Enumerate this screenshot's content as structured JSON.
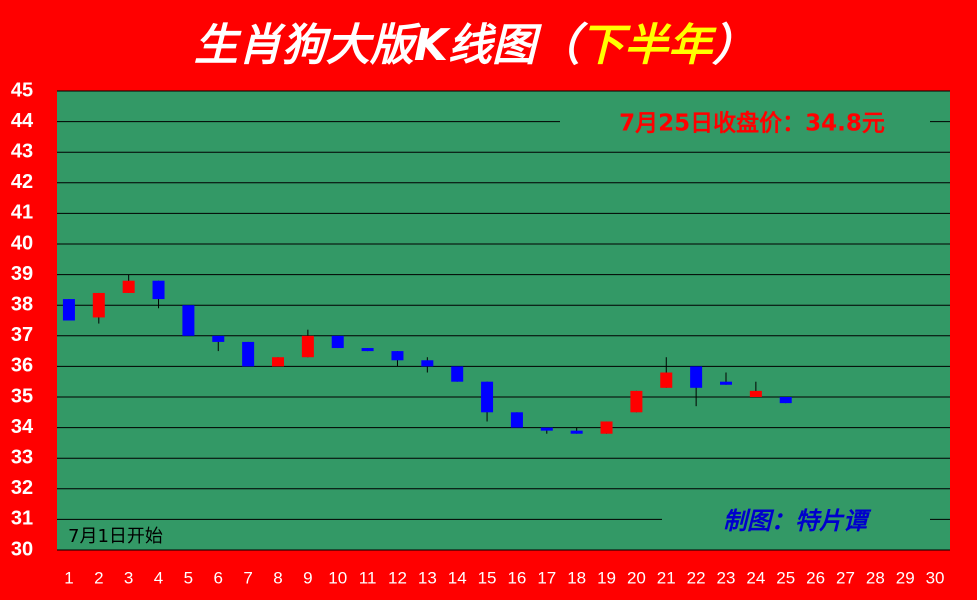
{
  "chart_data": {
    "type": "candlestick",
    "title_parts": [
      "生肖狗大版K线图（",
      "下半年",
      "）"
    ],
    "title_colors": [
      "#ffffff",
      "#ffff00",
      "#ffffff"
    ],
    "annotations": [
      "7月25日收盘价：34.8元",
      "7月1日开始",
      "制图：特片谭"
    ],
    "categories": [
      "1",
      "2",
      "3",
      "4",
      "5",
      "6",
      "7",
      "8",
      "9",
      "10",
      "11",
      "12",
      "13",
      "14",
      "15",
      "16",
      "17",
      "18",
      "19",
      "20",
      "21",
      "22",
      "23",
      "24",
      "25",
      "26",
      "27",
      "28",
      "29",
      "30"
    ],
    "open": [
      38.2,
      37.6,
      38.4,
      38.8,
      38.0,
      37.0,
      36.8,
      36.0,
      36.3,
      37.0,
      36.6,
      36.5,
      36.2,
      36.0,
      35.5,
      34.5,
      34.0,
      33.9,
      33.8,
      34.5,
      35.3,
      36.0,
      35.5,
      35.0,
      35.0,
      null,
      null,
      null,
      null,
      null
    ],
    "high": [
      38.2,
      38.4,
      39.0,
      38.8,
      38.0,
      37.0,
      36.8,
      36.3,
      37.2,
      37.0,
      36.6,
      36.5,
      36.3,
      36.0,
      35.5,
      34.5,
      34.0,
      34.0,
      34.2,
      35.2,
      36.3,
      36.0,
      35.8,
      35.5,
      35.0,
      null,
      null,
      null,
      null,
      null
    ],
    "low": [
      37.5,
      37.4,
      38.4,
      37.9,
      37.0,
      36.5,
      36.0,
      36.0,
      36.3,
      36.6,
      36.5,
      36.0,
      35.8,
      35.5,
      34.2,
      34.0,
      33.8,
      33.8,
      33.8,
      34.5,
      35.3,
      34.7,
      35.4,
      35.0,
      34.8,
      null,
      null,
      null,
      null,
      null
    ],
    "close": [
      37.5,
      38.4,
      38.8,
      38.2,
      37.0,
      36.8,
      36.0,
      36.3,
      37.0,
      36.6,
      36.5,
      36.2,
      36.0,
      35.5,
      34.5,
      34.0,
      33.9,
      33.8,
      34.2,
      35.2,
      35.8,
      35.3,
      35.4,
      35.2,
      34.8,
      null,
      null,
      null,
      null,
      null
    ],
    "up_color": "#ff0000",
    "down_color": "#0000ff",
    "ylim": [
      30,
      45
    ],
    "yticks": [
      30,
      31,
      32,
      33,
      34,
      35,
      36,
      37,
      38,
      39,
      40,
      41,
      42,
      43,
      44,
      45
    ],
    "grid": true
  }
}
